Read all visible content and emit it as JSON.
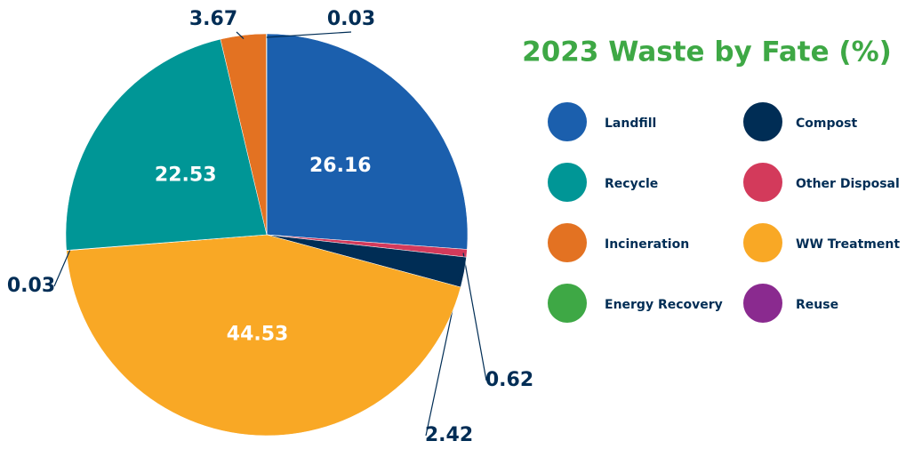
{
  "chart_data": {
    "type": "pie",
    "title": "2023 Waste by Fate (%)",
    "categories": [
      "Landfill",
      "Other Disposal",
      "Compost",
      "WW Treatment",
      "Reuse",
      "Recycle",
      "Incineration",
      "Energy Recovery"
    ],
    "values": [
      26.16,
      0.62,
      2.42,
      44.53,
      0.03,
      22.53,
      3.67,
      0.03
    ],
    "colors": [
      "#1b5fad",
      "#d33a5b",
      "#002d55",
      "#f9a825",
      "#8a2a8f",
      "#009696",
      "#e37222",
      "#3ea845"
    ]
  }
}
